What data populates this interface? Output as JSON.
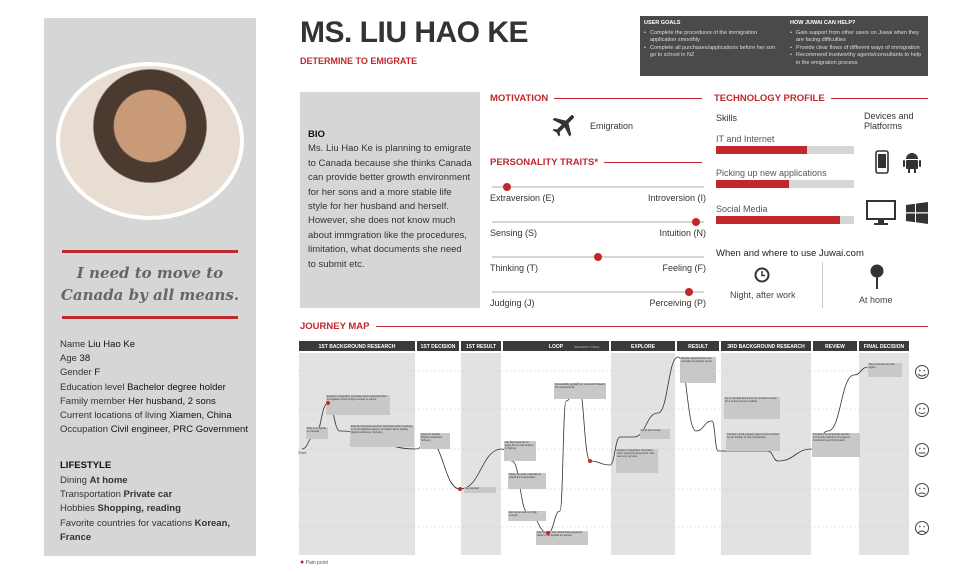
{
  "persona": {
    "name": "MS. LIU HAO KE",
    "subtitle": "DETERMINE TO EMIGRATE",
    "quote": "I need to move to Canada by all means."
  },
  "profile": [
    {
      "label": "Name",
      "value": "Liu Hao Ke"
    },
    {
      "label": "Age",
      "value": "38"
    },
    {
      "label": "Gender",
      "value": "F"
    },
    {
      "label": "Education level",
      "value": "Bachelor degree holder"
    },
    {
      "label": "Family member",
      "value": "Her husband, 2 sons"
    },
    {
      "label": "Current locations of living",
      "value": "Xiamen, China"
    },
    {
      "label": "Occupation",
      "value": "Civil engineer, PRC Government"
    }
  ],
  "lifestyle": {
    "title": "LIFESTYLE",
    "items": [
      {
        "label": "Dining",
        "value": "At home"
      },
      {
        "label": "Transportation",
        "value": "Private car"
      },
      {
        "label": "Hobbies",
        "value": "Shopping, reading"
      },
      {
        "label": "Favorite countries for vacations",
        "value": "Korean, France"
      }
    ]
  },
  "goals": {
    "title": "USER GOALS",
    "items": [
      "Complete the procedures of the immigration application smoothly",
      "Complete all purchases/applications before her son go to school in NZ"
    ]
  },
  "help": {
    "title": "HOW JUWAI CAN HELP?",
    "items": [
      "Gain support from other users on Juwai when they are facing difficulties",
      "Provide clear flows of different ways of immigration",
      "Recommend trustworthy agents/consultants to help in the emigration process"
    ]
  },
  "bio": {
    "title": "BIO",
    "text": "Ms. Liu Hao Ke is planning to emigrate to Canada because she thinks Canada can provide better growth environment for her sons and a more stable life style for her husband and herself. However, she does not know much about immgration like the procedures, limitation, what documents she need to submit etc."
  },
  "motivation": {
    "title": "MOTIVATION",
    "icon": "airplane-icon",
    "label": "Emigration"
  },
  "traits": {
    "title": "PERSONALITY TRAITS*",
    "items": [
      {
        "left": "Extraversion (E)",
        "right": "Introversion (I)",
        "value": 0.07
      },
      {
        "left": "Sensing (S)",
        "right": "Intuition (N)",
        "value": 0.96
      },
      {
        "left": "Thinking (T)",
        "right": "Feeling (F)",
        "value": 0.5
      },
      {
        "left": "Judging (J)",
        "right": "Perceiving (P)",
        "value": 0.93
      }
    ]
  },
  "tech": {
    "title": "TECHNOLOGY PROFILE",
    "skills_title": "Skills",
    "devices_title": "Devices and Platforms",
    "skills": [
      {
        "label": "IT and Internet",
        "value": 0.66
      },
      {
        "label": "Picking up new applications",
        "value": 0.53
      },
      {
        "label": "Social Media",
        "value": 0.9
      }
    ],
    "devices": [
      "mobile-phone-icon",
      "android-icon",
      "desktop-monitor-icon",
      "windows-icon"
    ],
    "when_title": "When and where to use Juwai.com",
    "when": [
      {
        "icon": "clock-icon",
        "label": "Night, after work"
      },
      {
        "icon": "location-pin-icon",
        "label": "At home"
      }
    ]
  },
  "journey": {
    "title": "JOURNEY MAP",
    "stages": [
      "1ST BACKGROUND RESEARCH",
      "1ST DECISION",
      "1ST RESULT",
      "LOOP",
      "EXPLORE",
      "RESULT",
      "3RD BACKGROUND RESEARCH",
      "REVIEW",
      "FINAL DECISION"
    ],
    "loop_note": "(REPEATED 3 TIMES)",
    "start_label": "Start",
    "notes": [
      "Plan to emigrate to Canada",
      "Enquire immigration consultant and understand their immigration score is high enough to submit",
      "Friends introduced another consultant who is working in an immigration agency, and learn about Quality Migrant Admission Scheme",
      "Apply for Quality Migrant Admission Scheme",
      "Get rejected",
      "Her friend ask her to apply for an examination in Sydney",
      "Study the given materials to attend the examination",
      "Her scores was not high enough",
      "She thought she should have prepared better to be applied for appeal",
      "Successfully applied her result and Passed the requirements",
      "Enquire immigration consultant when preparing documents. She was very nervous",
      "Send documents",
      "Receive approval from the Canada immigration center",
      "Fly to Canada and live in her brother's house for 2-month summer holiday",
      "Contact a local property agent recommended by her brother to visit 4 properties",
      "Compare the properties and the community based on the agent's introduction and her brother",
      "Rent a house from the agent"
    ],
    "pain_legend": "Pain point",
    "moods": [
      "very-happy-face-icon",
      "happy-face-icon",
      "neutral-face-icon",
      "sad-face-icon",
      "very-sad-face-icon"
    ]
  },
  "colors": {
    "accent": "#c0282c",
    "panel": "#d6d6d6",
    "dark": "#4a4a4a"
  }
}
